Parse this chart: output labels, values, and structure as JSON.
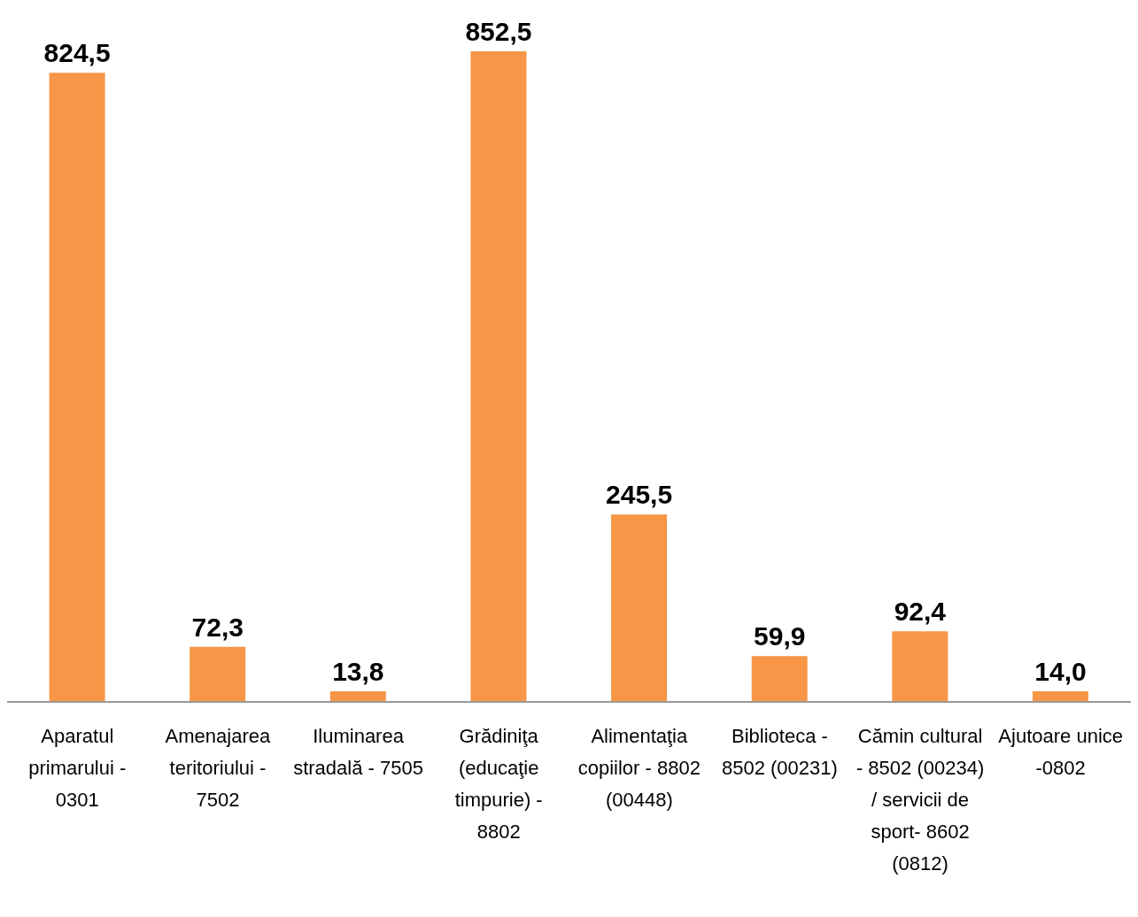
{
  "chart_data": {
    "type": "bar",
    "categories": [
      "Aparatul primarului - 0301",
      "Amenajarea teritoriului - 7502",
      "Iluminarea stradală - 7505",
      "Grădiniţa (educaţie timpurie) - 8802",
      "Alimentaţia copiilor - 8802 (00448)",
      "Biblioteca - 8502 (00231)",
      "Cămin cultural - 8502 (00234) / servicii de sport- 8602 (0812)",
      "Ajutoare unice -0802"
    ],
    "values": [
      824.5,
      72.3,
      13.8,
      852.5,
      245.5,
      59.9,
      92.4,
      14.0
    ],
    "value_labels": [
      "824,5",
      "72,3",
      "13,8",
      "852,5",
      "245,5",
      "59,9",
      "92,4",
      "14,0"
    ],
    "color": "#f79646"
  }
}
